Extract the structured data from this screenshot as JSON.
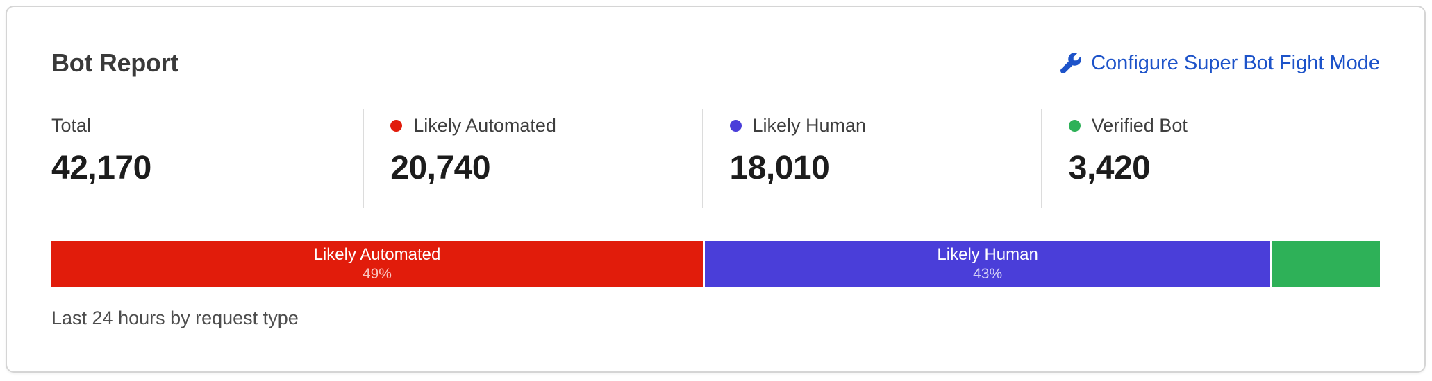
{
  "card": {
    "title": "Bot Report",
    "configure_link": {
      "label": "Configure Super Bot Fight Mode",
      "icon": "wrench-icon",
      "color": "#1d53c9"
    },
    "caption": "Last 24 hours by request type"
  },
  "stats": {
    "items": [
      {
        "label": "Total",
        "value": "42,170",
        "dot_color": null
      },
      {
        "label": "Likely Automated",
        "value": "20,740",
        "dot_color": "#e11c0b"
      },
      {
        "label": "Likely Human",
        "value": "18,010",
        "dot_color": "#4a3ed9"
      },
      {
        "label": "Verified Bot",
        "value": "3,420",
        "dot_color": "#2eb158"
      }
    ]
  },
  "chart_data": {
    "type": "stacked-bar",
    "title": "Bot Report",
    "caption": "Last 24 hours by request type",
    "unit": "requests",
    "total": 42170,
    "legend_position": "top-stats-row",
    "axis": "none",
    "segments": [
      {
        "name": "Likely Automated",
        "value": 20740,
        "percent": 49,
        "bar_label": "Likely Automated",
        "bar_percent_label": "49%",
        "color": "#e11c0b"
      },
      {
        "name": "Likely Human",
        "value": 18010,
        "percent": 43,
        "bar_label": "Likely Human",
        "bar_percent_label": "43%",
        "color": "#4a3ed9"
      },
      {
        "name": "Verified Bot",
        "value": 3420,
        "percent": 8,
        "bar_label": "",
        "bar_percent_label": "",
        "color": "#2eb158"
      }
    ]
  },
  "colors": {
    "card_border": "#d5d5d5",
    "divider": "#dcdcdc",
    "title_text": "#3a3a3a",
    "value_text": "#1c1c1c",
    "caption_text": "#4d4d4d",
    "link_blue": "#1d53c9",
    "likely_automated_red": "#e11c0b",
    "likely_human_indigo": "#4a3ed9",
    "verified_bot_green": "#2eb158"
  }
}
